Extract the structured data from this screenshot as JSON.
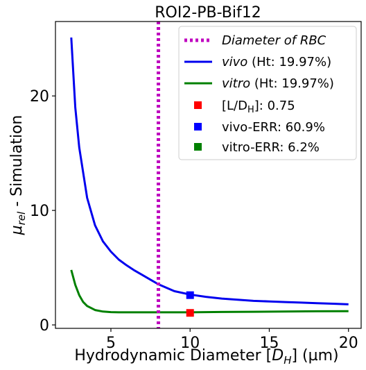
{
  "chart_data": {
    "type": "line",
    "title": "ROI2-PB-Bif12",
    "xlabel_main": "Hydrodynamic Diameter [",
    "xlabel_sym": "D",
    "xlabel_sub": "H",
    "xlabel_end": "] (µm)",
    "ylabel_sym": "μ",
    "ylabel_sub": "rel",
    "ylabel_end": " - Simulation",
    "xlim": [
      1.5,
      20.8
    ],
    "ylim": [
      -0.3,
      26.5
    ],
    "xticks": [
      5,
      10,
      15,
      20
    ],
    "yticks": [
      0,
      10,
      20
    ],
    "grid": false,
    "legend_position": "top-right",
    "vline": {
      "x": 8,
      "color": "#bf00bf",
      "label": "Diameter of RBC"
    },
    "series": [
      {
        "name": "vivo (Ht: 19.97%)",
        "label_italic": "vivo",
        "label_rest": " (Ht: 19.97%)",
        "color": "#0000ee",
        "x": [
          2.5,
          2.75,
          3,
          3.5,
          4,
          4.5,
          5,
          5.5,
          6,
          6.5,
          7,
          7.5,
          8,
          9,
          10,
          11,
          12,
          13,
          14,
          15,
          16,
          17,
          18,
          19,
          20
        ],
        "y": [
          25.1,
          19.0,
          15.5,
          11.1,
          8.7,
          7.3,
          6.4,
          5.7,
          5.2,
          4.75,
          4.35,
          3.95,
          3.55,
          2.95,
          2.65,
          2.45,
          2.3,
          2.2,
          2.1,
          2.05,
          2.0,
          1.95,
          1.9,
          1.85,
          1.8
        ]
      },
      {
        "name": "vitro (Ht: 19.97%)",
        "label_italic": "vitro",
        "label_rest": " (Ht: 19.97%)",
        "color": "#008000",
        "x": [
          2.5,
          2.75,
          3,
          3.25,
          3.5,
          4,
          4.5,
          5,
          5.5,
          6,
          7,
          8,
          9,
          10,
          12,
          14,
          16,
          18,
          20
        ],
        "y": [
          4.8,
          3.5,
          2.6,
          2.0,
          1.65,
          1.3,
          1.17,
          1.12,
          1.1,
          1.1,
          1.1,
          1.1,
          1.1,
          1.1,
          1.13,
          1.15,
          1.17,
          1.19,
          1.2
        ]
      }
    ],
    "markers": [
      {
        "label": "[L/D_H]: 0.75",
        "label_sym": "[L/D",
        "label_sub": "H",
        "label_rest": "]: 0.75",
        "color": "#ff0000",
        "x": 10,
        "y": 1.05
      },
      {
        "label": "vivo-ERR: 60.9%",
        "color": "#0000ff",
        "x": 10,
        "y": 2.6
      },
      {
        "label": "vitro-ERR: 6.2%",
        "color": "#008000",
        "x": 10,
        "y": null
      }
    ]
  }
}
